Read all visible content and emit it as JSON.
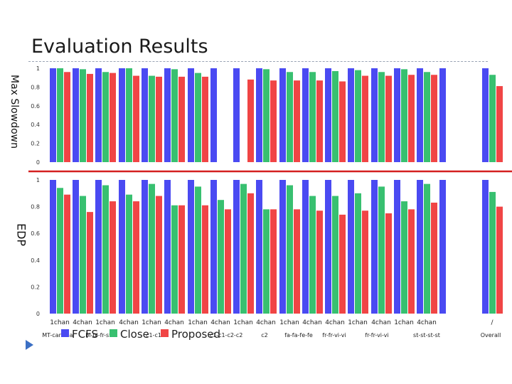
{
  "slide": {
    "title": "Evaluation Results",
    "nav_icon": "triangle-right-icon"
  },
  "colors": {
    "FCFS": "#4a4af2",
    "Close": "#38c070",
    "Proposed": "#f04545",
    "reference_line": "#d42020"
  },
  "chart_data": [
    {
      "type": "bar",
      "ylabel": "Max Slowdown",
      "ylim": [
        0,
        1
      ],
      "yticks": [
        "0",
        "0.2",
        "0.4",
        "0.6",
        "0.8",
        "1"
      ],
      "series": [
        {
          "name": "FCFS",
          "values": [
            1,
            1,
            1,
            1,
            1,
            1,
            1,
            1,
            1,
            1,
            1,
            1,
            1,
            1,
            1,
            1,
            1,
            1,
            1
          ]
        },
        {
          "name": "Close",
          "values": [
            1,
            0.99,
            0.96,
            1,
            0.92,
            0.99,
            0.95,
            null,
            null,
            0.99,
            0.96,
            0.96,
            0.97,
            0.98,
            0.96,
            0.99,
            0.96,
            null,
            0.93
          ]
        },
        {
          "name": "Proposed",
          "values": [
            0.96,
            0.94,
            0.95,
            0.92,
            0.91,
            0.91,
            0.91,
            null,
            0.88,
            0.87,
            0.87,
            0.87,
            0.86,
            0.92,
            0.92,
            0.93,
            0.93,
            null,
            0.81
          ]
        }
      ]
    },
    {
      "type": "bar",
      "ylabel": "EDP",
      "ylim": [
        0,
        1
      ],
      "yticks": [
        "0",
        "0.2",
        "0.4",
        "0.6",
        "0.8",
        "1"
      ],
      "categories_top": [
        "1chan",
        "4chan",
        "1chan",
        "4chan",
        "1chan",
        "4chan",
        "1chan",
        "4chan",
        "1chan",
        "4chan",
        "1chan",
        "4chan",
        "4chan",
        "1chan",
        "4chan",
        "1chan",
        "4chan",
        "",
        "/"
      ],
      "categories_bottom": [
        "MT-canneal",
        "bl-bl-fr-sw",
        "c1-c1",
        "c1-c1-c2-c2",
        "c2",
        "fa-fa-fe-fe",
        "fr-fr-vi-vi",
        "fr-fr-vi-vi",
        "st-st-st-st",
        "Overall"
      ],
      "series": [
        {
          "name": "FCFS",
          "values": [
            1,
            1,
            1,
            1,
            1,
            1,
            1,
            1,
            1,
            1,
            1,
            1,
            1,
            1,
            1,
            1,
            1,
            1,
            1
          ]
        },
        {
          "name": "Close",
          "values": [
            0.94,
            0.88,
            0.96,
            0.89,
            0.97,
            0.81,
            0.95,
            0.85,
            0.97,
            0.78,
            0.96,
            0.88,
            0.88,
            0.9,
            0.95,
            0.84,
            0.97,
            null,
            0.91
          ]
        },
        {
          "name": "Proposed",
          "values": [
            0.89,
            0.76,
            0.84,
            0.84,
            0.88,
            0.81,
            0.81,
            0.78,
            0.9,
            0.78,
            0.78,
            0.77,
            0.74,
            0.77,
            0.75,
            0.78,
            0.83,
            null,
            0.8
          ]
        }
      ]
    }
  ],
  "legend": [
    "FCFS",
    "Close",
    "Proposed"
  ]
}
